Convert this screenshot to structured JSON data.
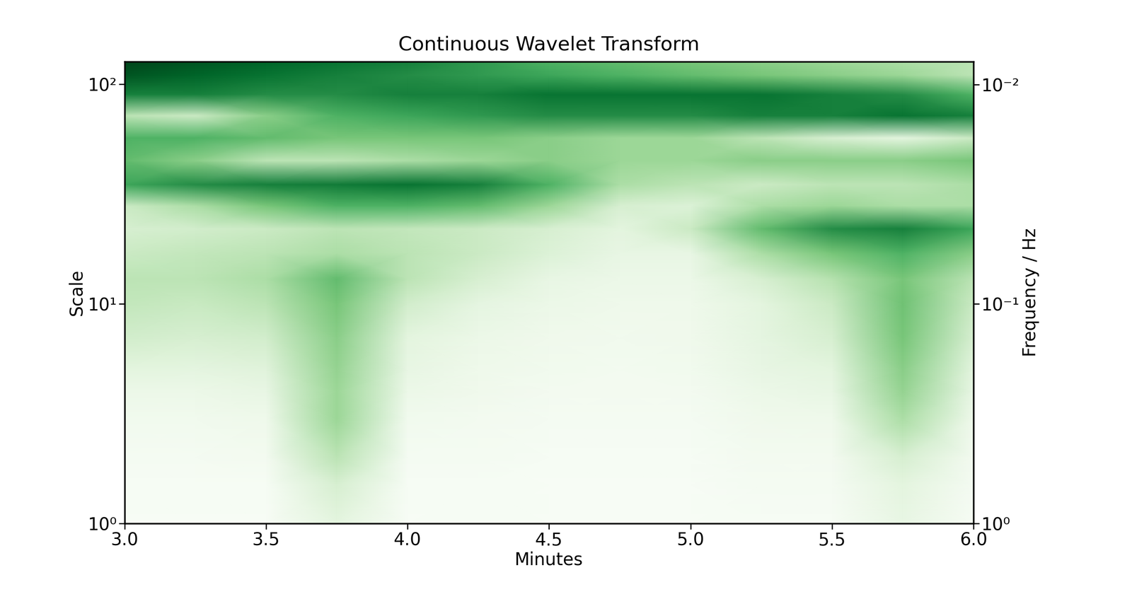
{
  "chart_data": {
    "type": "heatmap",
    "title": "Continuous Wavelet Transform",
    "x_label": "Minutes",
    "y_label": "Scale",
    "y2_label": "Frequency / Hz",
    "color": "Greens",
    "log": "y",
    "xlim": [
      3.0,
      6.0
    ],
    "xticks": [
      3.0,
      3.5,
      4.0,
      4.5,
      5.0,
      5.5,
      6.0
    ],
    "ylim": [
      1,
      127
    ],
    "yticks": [
      {
        "value": 1,
        "label": "10⁰"
      },
      {
        "value": 10,
        "label": "10¹"
      },
      {
        "value": 100,
        "label": "10²"
      }
    ],
    "y2lim": [
      1,
      0.00787
    ],
    "y2ticks": [
      {
        "value": 1,
        "label": "10⁰"
      },
      {
        "value": 0.1,
        "label": "10⁻¹"
      },
      {
        "value": 0.01,
        "label": "10⁻²"
      }
    ],
    "x": [
      3.0,
      3.25,
      3.5,
      3.75,
      4.0,
      4.25,
      4.5,
      4.75,
      5.0,
      5.25,
      5.5,
      5.75,
      6.0
    ],
    "y": [
      1,
      1.5,
      2,
      3,
      4,
      5,
      7,
      10,
      13,
      17,
      22,
      28,
      35,
      45,
      57,
      72,
      90,
      110,
      127
    ],
    "cells": [
      [
        0.02,
        0.02,
        0.02,
        0.15,
        0.02,
        0.03,
        0.02,
        0.02,
        0.02,
        0.03,
        0.03,
        0.12,
        0.03
      ],
      [
        0.03,
        0.03,
        0.03,
        0.2,
        0.03,
        0.03,
        0.02,
        0.02,
        0.02,
        0.04,
        0.04,
        0.15,
        0.04
      ],
      [
        0.04,
        0.04,
        0.05,
        0.3,
        0.04,
        0.04,
        0.03,
        0.03,
        0.03,
        0.05,
        0.05,
        0.2,
        0.05
      ],
      [
        0.06,
        0.06,
        0.08,
        0.4,
        0.06,
        0.05,
        0.04,
        0.04,
        0.04,
        0.07,
        0.08,
        0.35,
        0.08
      ],
      [
        0.1,
        0.1,
        0.12,
        0.4,
        0.1,
        0.07,
        0.05,
        0.05,
        0.05,
        0.1,
        0.12,
        0.42,
        0.12
      ],
      [
        0.15,
        0.14,
        0.16,
        0.42,
        0.12,
        0.08,
        0.06,
        0.05,
        0.06,
        0.12,
        0.15,
        0.45,
        0.15
      ],
      [
        0.22,
        0.2,
        0.22,
        0.45,
        0.15,
        0.1,
        0.07,
        0.06,
        0.07,
        0.14,
        0.2,
        0.5,
        0.2
      ],
      [
        0.28,
        0.26,
        0.3,
        0.5,
        0.22,
        0.14,
        0.1,
        0.08,
        0.08,
        0.15,
        0.25,
        0.52,
        0.25
      ],
      [
        0.3,
        0.3,
        0.35,
        0.55,
        0.3,
        0.2,
        0.12,
        0.1,
        0.1,
        0.2,
        0.32,
        0.5,
        0.3
      ],
      [
        0.25,
        0.28,
        0.3,
        0.35,
        0.3,
        0.25,
        0.18,
        0.12,
        0.12,
        0.35,
        0.5,
        0.6,
        0.45
      ],
      [
        0.2,
        0.22,
        0.25,
        0.3,
        0.28,
        0.25,
        0.2,
        0.15,
        0.25,
        0.55,
        0.75,
        0.8,
        0.65
      ],
      [
        0.25,
        0.35,
        0.5,
        0.6,
        0.6,
        0.55,
        0.4,
        0.2,
        0.18,
        0.35,
        0.4,
        0.35,
        0.35
      ],
      [
        0.65,
        0.75,
        0.8,
        0.82,
        0.85,
        0.8,
        0.6,
        0.35,
        0.3,
        0.25,
        0.3,
        0.3,
        0.35
      ],
      [
        0.55,
        0.45,
        0.3,
        0.3,
        0.35,
        0.4,
        0.45,
        0.4,
        0.4,
        0.45,
        0.45,
        0.45,
        0.5
      ],
      [
        0.6,
        0.6,
        0.55,
        0.5,
        0.5,
        0.5,
        0.45,
        0.4,
        0.4,
        0.3,
        0.2,
        0.15,
        0.25
      ],
      [
        0.3,
        0.25,
        0.45,
        0.6,
        0.65,
        0.7,
        0.75,
        0.75,
        0.75,
        0.8,
        0.8,
        0.85,
        0.8
      ],
      [
        0.8,
        0.8,
        0.75,
        0.75,
        0.8,
        0.8,
        0.85,
        0.85,
        0.85,
        0.85,
        0.8,
        0.75,
        0.6
      ],
      [
        0.95,
        0.9,
        0.85,
        0.8,
        0.75,
        0.7,
        0.65,
        0.6,
        0.55,
        0.5,
        0.45,
        0.4,
        0.3
      ],
      [
        1,
        0.95,
        0.9,
        0.85,
        0.8,
        0.7,
        0.6,
        0.55,
        0.5,
        0.45,
        0.4,
        0.35,
        0.3
      ]
    ]
  }
}
